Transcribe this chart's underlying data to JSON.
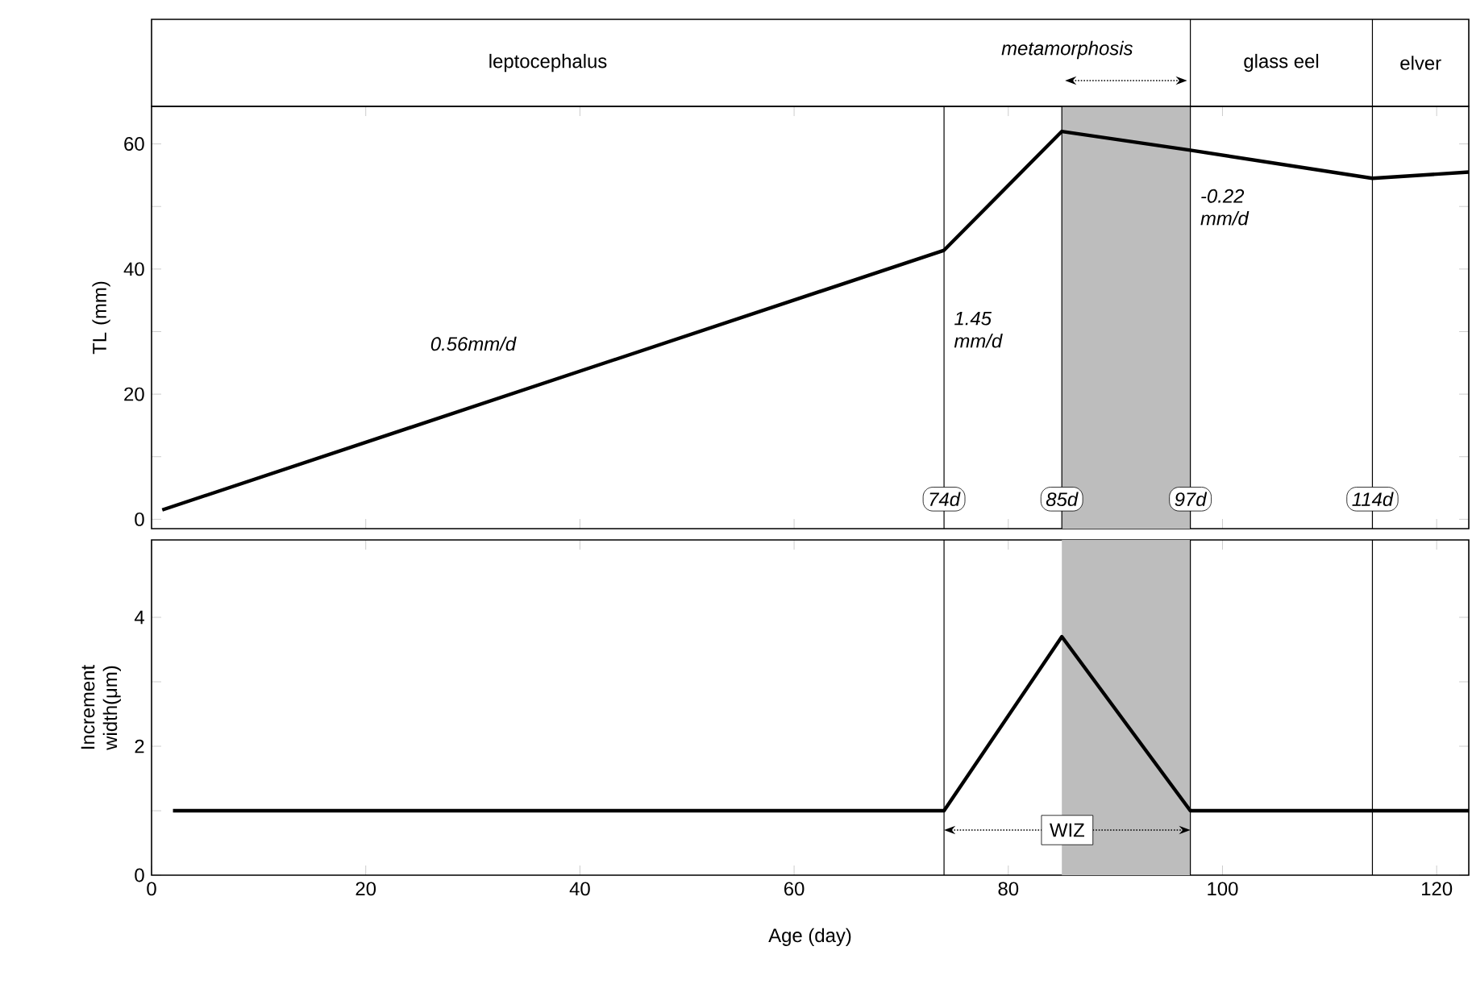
{
  "chart_data": [
    {
      "type": "line",
      "ylabel": "TL  (mm)",
      "x": [
        1,
        74,
        85,
        97,
        114,
        123
      ],
      "series": [
        {
          "color": "#000000",
          "values": [
            1.5,
            43,
            62,
            59,
            54.5,
            55.5
          ]
        }
      ],
      "xlim": [
        0,
        123
      ],
      "xticks": [
        {
          "value": 20,
          "label": null
        },
        {
          "value": 40,
          "label": null
        },
        {
          "value": 60,
          "label": null
        },
        {
          "value": 80,
          "label": null
        },
        {
          "value": 100,
          "label": null
        },
        {
          "value": 120,
          "label": null
        }
      ],
      "ylim": [
        -1.5,
        66
      ],
      "yticks": [
        0,
        {
          "value": 10,
          "label": null
        },
        20,
        {
          "value": 30,
          "label": null
        },
        40,
        {
          "value": 50,
          "label": null
        },
        60
      ],
      "tick_labels": "y",
      "marker": "none",
      "line_style": "solid",
      "ref_lines": [
        {
          "axis": "x",
          "value": 74,
          "label": "74d"
        },
        {
          "axis": "x",
          "value": 85,
          "label": "85d"
        },
        {
          "axis": "x",
          "value": 97,
          "label": "97d"
        },
        {
          "axis": "x",
          "value": 114,
          "label": "114d"
        }
      ],
      "bands": [
        {
          "axis": "x",
          "from": 85,
          "to": 97,
          "color": "#bdbdbd"
        }
      ],
      "annotations": [
        "leptocephalus",
        "metamorphosis",
        "glass eel",
        "elver",
        "0.56mm/d",
        "1.45 mm/d",
        "-0.22 mm/d"
      ]
    },
    {
      "type": "line",
      "ylabel": "Increment width(μm)",
      "xlabel": "Age  (day)",
      "x": [
        2,
        74,
        85,
        97,
        123
      ],
      "series": [
        {
          "color": "#000000",
          "values": [
            1,
            1,
            3.7,
            1,
            1
          ]
        }
      ],
      "xlim": [
        0,
        123
      ],
      "xticks": [
        0,
        20,
        40,
        60,
        80,
        100,
        120
      ],
      "ylim": [
        0,
        5.2
      ],
      "yticks": [
        0,
        {
          "value": 1,
          "label": null
        },
        2,
        {
          "value": 3,
          "label": null
        },
        4
      ],
      "marker": "none",
      "line_style": "solid",
      "ref_lines": [
        {
          "axis": "x",
          "value": 74
        },
        {
          "axis": "x",
          "value": 97
        },
        {
          "axis": "x",
          "value": 114
        }
      ],
      "bands": [
        {
          "axis": "x",
          "from": 85,
          "to": 97,
          "color": "#bdbdbd"
        }
      ],
      "annotations": [
        {
          "text": "WIZ",
          "x": 85.5,
          "y": 0.7
        }
      ]
    }
  ]
}
